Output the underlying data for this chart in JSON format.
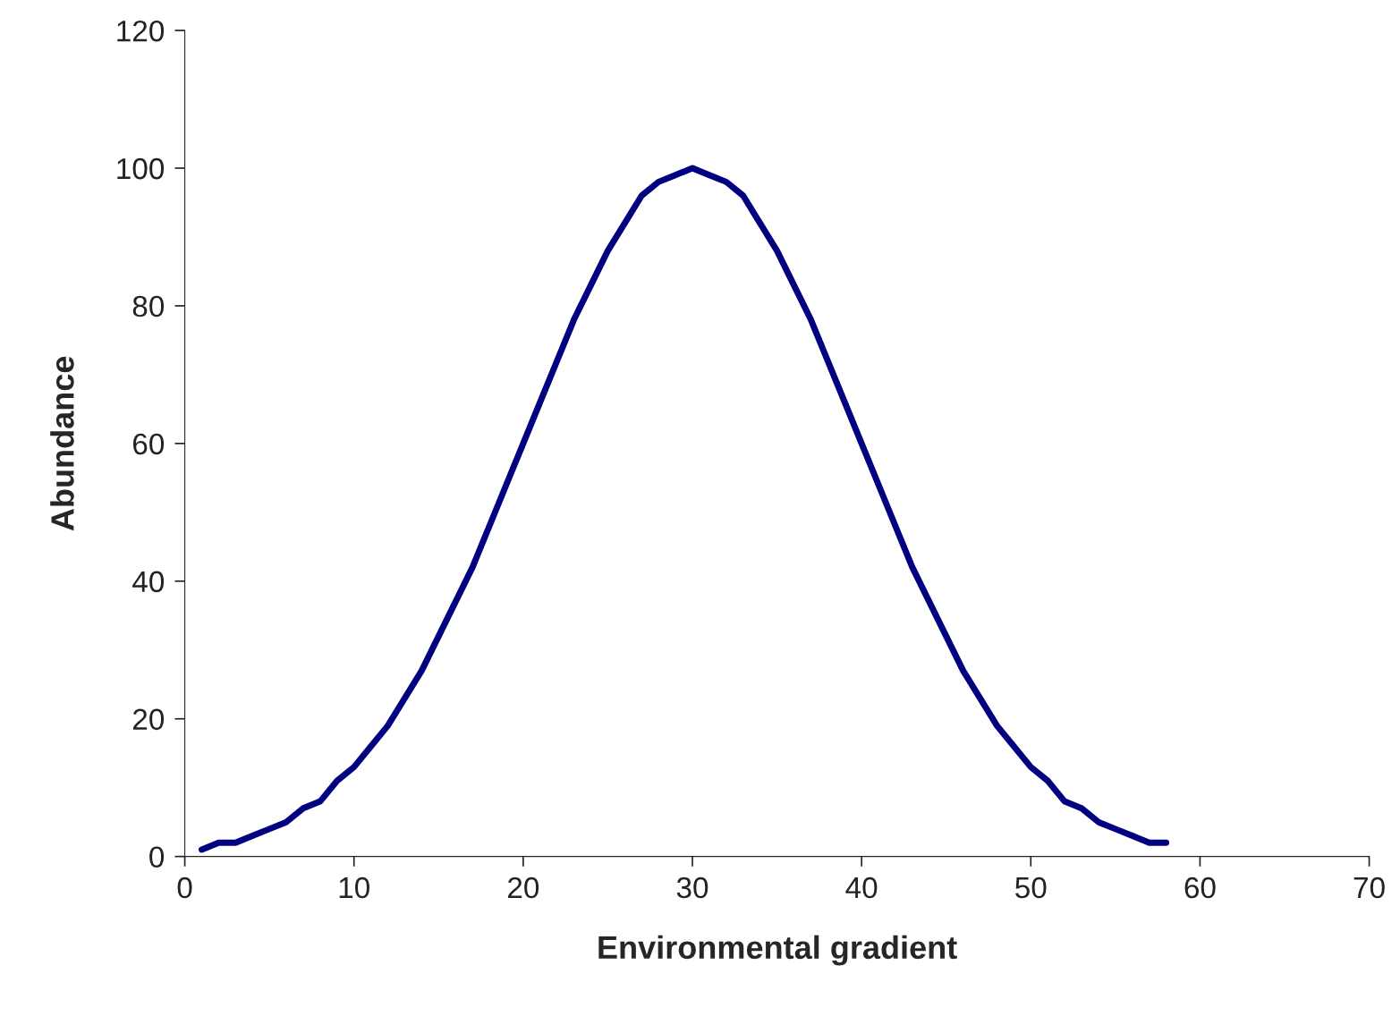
{
  "chart_data": {
    "type": "line",
    "xlabel": "Environmental gradient",
    "ylabel": "Abundance",
    "x": [
      1,
      2,
      3,
      4,
      5,
      6,
      7,
      8,
      9,
      10,
      11,
      12,
      13,
      14,
      15,
      16,
      17,
      18,
      19,
      20,
      21,
      22,
      23,
      24,
      25,
      26,
      27,
      28,
      29,
      30,
      31,
      32,
      33,
      34,
      35,
      36,
      37,
      38,
      39,
      40,
      41,
      42,
      43,
      44,
      45,
      46,
      47,
      48,
      49,
      50,
      51,
      52,
      53,
      54,
      55,
      56,
      57,
      58
    ],
    "series": [
      {
        "color": "#000080",
        "values": [
          1,
          2,
          2,
          3,
          4,
          5,
          7,
          8,
          11,
          13,
          16,
          19,
          23,
          27,
          32,
          37,
          42,
          48,
          54,
          60,
          66,
          72,
          78,
          83,
          88,
          92,
          96,
          98,
          99,
          100,
          99,
          98,
          96,
          92,
          88,
          83,
          78,
          72,
          66,
          60,
          54,
          48,
          42,
          37,
          32,
          27,
          23,
          19,
          16,
          13,
          11,
          8,
          7,
          5,
          4,
          3,
          2,
          2
        ]
      }
    ],
    "xlim": [
      0,
      70
    ],
    "xticks": [
      0,
      10,
      20,
      30,
      40,
      50,
      60,
      70
    ],
    "ylim": [
      0,
      120
    ],
    "yticks": [
      0,
      20,
      40,
      60,
      80,
      100,
      120
    ],
    "grid": false,
    "legend": false,
    "marker": "none",
    "line_style": "solid"
  }
}
